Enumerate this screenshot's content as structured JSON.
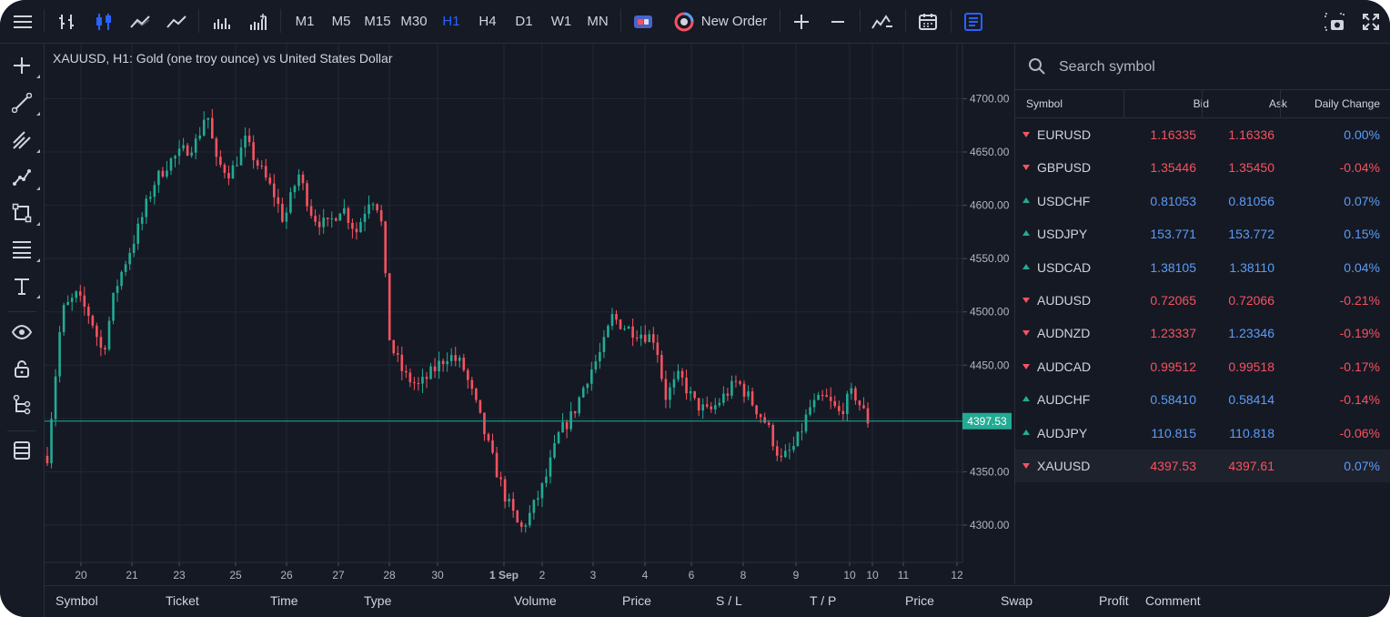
{
  "toolbar": {
    "timeframes": [
      "M1",
      "M5",
      "M15",
      "M30",
      "H1",
      "H4",
      "D1",
      "W1",
      "MN"
    ],
    "active_timeframe": "H1",
    "new_order_label": "New Order",
    "accent_color": "#2962ff"
  },
  "chart": {
    "title": "XAUUSD, H1: Gold (one troy ounce) vs United States Dollar",
    "current_price_label": "4397.53",
    "up_color": "#22ab94",
    "down_color": "#f7525f"
  },
  "chart_data": {
    "type": "candlestick",
    "symbol": "XAUUSD",
    "timeframe": "H1",
    "y_ticks": [
      "4700.00",
      "4650.00",
      "4600.00",
      "4550.00",
      "4500.00",
      "4450.00",
      "4400.00",
      "4350.00",
      "4300.00"
    ],
    "ylim": [
      4265,
      4720
    ],
    "x_ticks": [
      "20",
      "21",
      "23",
      "25",
      "26",
      "27",
      "28",
      "30",
      "1 Sep",
      "2",
      "3",
      "4",
      "6",
      "8",
      "9",
      "10",
      "10",
      "11",
      "12"
    ],
    "current_price": 4397.53,
    "grid": true,
    "close_path": [
      [
        0,
        4365
      ],
      [
        0.6,
        4500
      ],
      [
        1.2,
        4515
      ],
      [
        1.8,
        4495
      ],
      [
        2.3,
        4460
      ],
      [
        2.8,
        4520
      ],
      [
        3.2,
        4545
      ],
      [
        3.8,
        4580
      ],
      [
        4.4,
        4620
      ],
      [
        5.0,
        4640
      ],
      [
        5.6,
        4650
      ],
      [
        6.2,
        4660
      ],
      [
        6.6,
        4690
      ],
      [
        7.0,
        4640
      ],
      [
        7.6,
        4630
      ],
      [
        8.2,
        4660
      ],
      [
        8.8,
        4635
      ],
      [
        9.4,
        4610
      ],
      [
        9.8,
        4585
      ],
      [
        10.4,
        4630
      ],
      [
        11.0,
        4590
      ],
      [
        11.6,
        4580
      ],
      [
        12.2,
        4600
      ],
      [
        12.8,
        4575
      ],
      [
        13.4,
        4610
      ],
      [
        13.8,
        4595
      ],
      [
        14.2,
        4470
      ],
      [
        14.8,
        4440
      ],
      [
        15.4,
        4430
      ],
      [
        16.0,
        4445
      ],
      [
        16.6,
        4460
      ],
      [
        17.2,
        4450
      ],
      [
        17.8,
        4410
      ],
      [
        18.4,
        4365
      ],
      [
        19.0,
        4325
      ],
      [
        19.6,
        4295
      ],
      [
        20.0,
        4310
      ],
      [
        20.6,
        4340
      ],
      [
        21.2,
        4385
      ],
      [
        21.8,
        4405
      ],
      [
        22.4,
        4440
      ],
      [
        23.0,
        4465
      ],
      [
        23.4,
        4495
      ],
      [
        24.0,
        4485
      ],
      [
        24.6,
        4480
      ],
      [
        25.2,
        4475
      ],
      [
        25.6,
        4420
      ],
      [
        26.2,
        4440
      ],
      [
        26.8,
        4415
      ],
      [
        27.4,
        4405
      ],
      [
        28.0,
        4420
      ],
      [
        28.6,
        4435
      ],
      [
        29.2,
        4415
      ],
      [
        29.8,
        4395
      ],
      [
        30.4,
        4360
      ],
      [
        31.0,
        4375
      ],
      [
        31.6,
        4410
      ],
      [
        32.2,
        4420
      ],
      [
        32.8,
        4405
      ],
      [
        33.4,
        4425
      ],
      [
        34.0,
        4398
      ]
    ]
  },
  "watchlist": {
    "search_placeholder": "Search symbol",
    "headers": {
      "symbol": "Symbol",
      "bid": "Bid",
      "ask": "Ask",
      "change": "Daily Change"
    },
    "rows": [
      {
        "symbol": "EURUSD",
        "dir": "down",
        "bid": "1.16335",
        "ask": "1.16336",
        "change": "0.00%",
        "bid_c": "red",
        "ask_c": "red",
        "chg_c": "blue"
      },
      {
        "symbol": "GBPUSD",
        "dir": "down",
        "bid": "1.35446",
        "ask": "1.35450",
        "change": "-0.04%",
        "bid_c": "red",
        "ask_c": "red",
        "chg_c": "red"
      },
      {
        "symbol": "USDCHF",
        "dir": "up",
        "bid": "0.81053",
        "ask": "0.81056",
        "change": "0.07%",
        "bid_c": "blue",
        "ask_c": "blue",
        "chg_c": "blue"
      },
      {
        "symbol": "USDJPY",
        "dir": "up",
        "bid": "153.771",
        "ask": "153.772",
        "change": "0.15%",
        "bid_c": "blue",
        "ask_c": "blue",
        "chg_c": "blue"
      },
      {
        "symbol": "USDCAD",
        "dir": "up",
        "bid": "1.38105",
        "ask": "1.38110",
        "change": "0.04%",
        "bid_c": "blue",
        "ask_c": "blue",
        "chg_c": "blue"
      },
      {
        "symbol": "AUDUSD",
        "dir": "down",
        "bid": "0.72065",
        "ask": "0.72066",
        "change": "-0.21%",
        "bid_c": "red",
        "ask_c": "red",
        "chg_c": "red"
      },
      {
        "symbol": "AUDNZD",
        "dir": "down",
        "bid": "1.23337",
        "ask": "1.23346",
        "change": "-0.19%",
        "bid_c": "red",
        "ask_c": "blue",
        "chg_c": "red"
      },
      {
        "symbol": "AUDCAD",
        "dir": "down",
        "bid": "0.99512",
        "ask": "0.99518",
        "change": "-0.17%",
        "bid_c": "red",
        "ask_c": "red",
        "chg_c": "red"
      },
      {
        "symbol": "AUDCHF",
        "dir": "up",
        "bid": "0.58410",
        "ask": "0.58414",
        "change": "-0.14%",
        "bid_c": "blue",
        "ask_c": "blue",
        "chg_c": "red"
      },
      {
        "symbol": "AUDJPY",
        "dir": "up",
        "bid": "110.815",
        "ask": "110.818",
        "change": "-0.06%",
        "bid_c": "blue",
        "ask_c": "blue",
        "chg_c": "red"
      },
      {
        "symbol": "XAUUSD",
        "dir": "down",
        "bid": "4397.53",
        "ask": "4397.61",
        "change": "0.07%",
        "bid_c": "red",
        "ask_c": "red",
        "chg_c": "blue",
        "selected": true
      }
    ]
  },
  "positions": {
    "columns": [
      "Symbol",
      "Ticket",
      "Time",
      "Type",
      "Volume",
      "Price",
      "S / L",
      "T / P",
      "Price",
      "Swap",
      "Profit",
      "Comment"
    ]
  }
}
